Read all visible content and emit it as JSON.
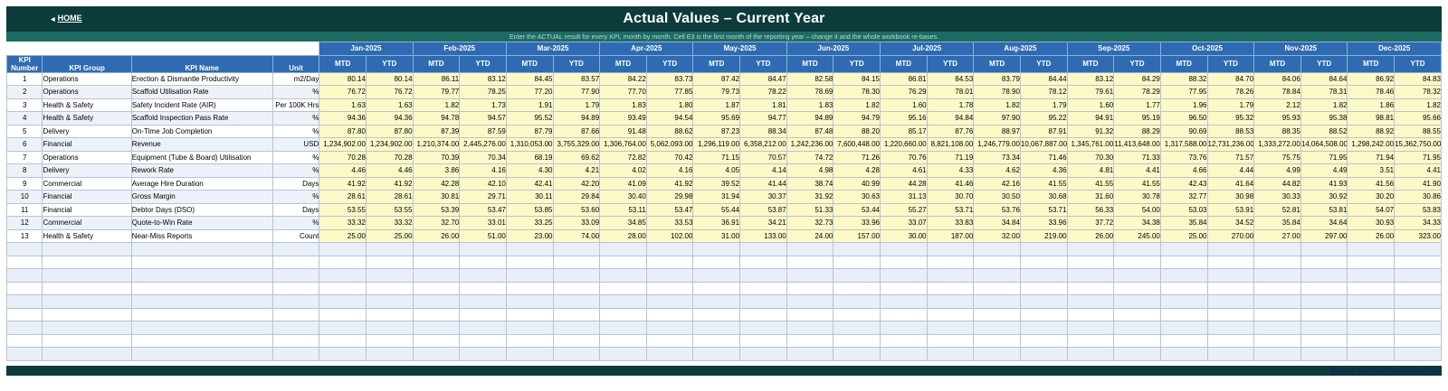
{
  "header": {
    "home_label": "HOME",
    "title": "Actual Values  –  Current Year",
    "subtitle": "Enter the ACTUAL result for every KPI, month by month. Cell E3 is the first month of the reporting year – change it and the whole workbook re-bases."
  },
  "columns": {
    "kpi_number": "KPI Number",
    "kpi_group": "KPI Group",
    "kpi_name": "KPI Name",
    "unit": "Unit",
    "mtd": "MTD",
    "ytd": "YTD"
  },
  "months": [
    "Jan-2025",
    "Feb-2025",
    "Mar-2025",
    "Apr-2025",
    "May-2025",
    "Jun-2025",
    "Jul-2025",
    "Aug-2025",
    "Sep-2025",
    "Oct-2025",
    "Nov-2025",
    "Dec-2025"
  ],
  "rows": [
    {
      "num": "1",
      "group": "Operations",
      "name": "Erection & Dismantle Productivity",
      "unit": "m2/Day",
      "values": [
        "80.14",
        "80.14",
        "86.11",
        "83.12",
        "84.45",
        "83.57",
        "84.22",
        "83.73",
        "87.42",
        "84.47",
        "82.58",
        "84.15",
        "86.81",
        "84.53",
        "83.79",
        "84.44",
        "83.12",
        "84.29",
        "88.32",
        "84.70",
        "84.06",
        "84.64",
        "86.92",
        "84.83"
      ]
    },
    {
      "num": "2",
      "group": "Operations",
      "name": "Scaffold Utilisation Rate",
      "unit": "%",
      "values": [
        "76.72",
        "76.72",
        "79.77",
        "78.25",
        "77.20",
        "77.90",
        "77.70",
        "77.85",
        "79.73",
        "78.22",
        "78.69",
        "78.30",
        "76.29",
        "78.01",
        "78.90",
        "78.12",
        "79.61",
        "78.29",
        "77.95",
        "78.26",
        "78.84",
        "78.31",
        "78.46",
        "78.32"
      ]
    },
    {
      "num": "3",
      "group": "Health & Safety",
      "name": "Safety Incident Rate (AIR)",
      "unit": "Per 100K Hrs",
      "values": [
        "1.63",
        "1.63",
        "1.82",
        "1.73",
        "1.91",
        "1.79",
        "1.83",
        "1.80",
        "1.87",
        "1.81",
        "1.83",
        "1.82",
        "1.60",
        "1.78",
        "1.82",
        "1.79",
        "1.60",
        "1.77",
        "1.96",
        "1.79",
        "2.12",
        "1.82",
        "1.86",
        "1.82"
      ]
    },
    {
      "num": "4",
      "group": "Health & Safety",
      "name": "Scaffold Inspection Pass Rate",
      "unit": "%",
      "values": [
        "94.36",
        "94.36",
        "94.78",
        "94.57",
        "95.52",
        "94.89",
        "93.49",
        "94.54",
        "95.69",
        "94.77",
        "94.89",
        "94.79",
        "95.16",
        "94.84",
        "97.90",
        "95.22",
        "94.91",
        "95.19",
        "96.50",
        "95.32",
        "95.93",
        "95.38",
        "98.81",
        "95.66"
      ]
    },
    {
      "num": "5",
      "group": "Delivery",
      "name": "On-Time Job Completion",
      "unit": "%",
      "values": [
        "87.80",
        "87.80",
        "87.39",
        "87.59",
        "87.79",
        "87.66",
        "91.48",
        "88.62",
        "87.23",
        "88.34",
        "87.48",
        "88.20",
        "85.17",
        "87.76",
        "88.97",
        "87.91",
        "91.32",
        "88.29",
        "90.69",
        "88.53",
        "88.35",
        "88.52",
        "88.92",
        "88.55"
      ]
    },
    {
      "num": "6",
      "group": "Financial",
      "name": "Revenue",
      "unit": "USD",
      "values": [
        "1,234,902.00",
        "1,234,902.00",
        "1,210,374.00",
        "2,445,276.00",
        "1,310,053.00",
        "3,755,329.00",
        "1,306,764.00",
        "5,062,093.00",
        "1,296,119.00",
        "6,358,212.00",
        "1,242,236.00",
        "7,600,448.00",
        "1,220,660.00",
        "8,821,108.00",
        "1,246,779.00",
        "10,067,887.00",
        "1,345,761.00",
        "11,413,648.00",
        "1,317,588.00",
        "12,731,236.00",
        "1,333,272.00",
        "14,064,508.00",
        "1,298,242.00",
        "15,362,750.00"
      ]
    },
    {
      "num": "7",
      "group": "Operations",
      "name": "Equipment (Tube & Board) Utilisation",
      "unit": "%",
      "values": [
        "70.28",
        "70.28",
        "70.39",
        "70.34",
        "68.19",
        "69.62",
        "72.82",
        "70.42",
        "71.15",
        "70.57",
        "74.72",
        "71.26",
        "70.76",
        "71.19",
        "73.34",
        "71.46",
        "70.30",
        "71.33",
        "73.76",
        "71.57",
        "75.75",
        "71.95",
        "71.94",
        "71.95"
      ]
    },
    {
      "num": "8",
      "group": "Delivery",
      "name": "Rework Rate",
      "unit": "%",
      "values": [
        "4.46",
        "4.46",
        "3.86",
        "4.16",
        "4.30",
        "4.21",
        "4.02",
        "4.16",
        "4.05",
        "4.14",
        "4.98",
        "4.28",
        "4.61",
        "4.33",
        "4.62",
        "4.36",
        "4.81",
        "4.41",
        "4.66",
        "4.44",
        "4.99",
        "4.49",
        "3.51",
        "4.41"
      ]
    },
    {
      "num": "9",
      "group": "Commercial",
      "name": "Average Hire Duration",
      "unit": "Days",
      "values": [
        "41.92",
        "41.92",
        "42.28",
        "42.10",
        "42.41",
        "42.20",
        "41.09",
        "41.92",
        "39.52",
        "41.44",
        "38.74",
        "40.99",
        "44.28",
        "41.46",
        "42.16",
        "41.55",
        "41.55",
        "41.55",
        "42.43",
        "41.64",
        "44.82",
        "41.93",
        "41.56",
        "41.90"
      ]
    },
    {
      "num": "10",
      "group": "Financial",
      "name": "Gross Margin",
      "unit": "%",
      "values": [
        "28.61",
        "28.61",
        "30.81",
        "29.71",
        "30.11",
        "29.84",
        "30.40",
        "29.98",
        "31.94",
        "30.37",
        "31.92",
        "30.63",
        "31.13",
        "30.70",
        "30.50",
        "30.68",
        "31.60",
        "30.78",
        "32.77",
        "30.98",
        "30.33",
        "30.92",
        "30.20",
        "30.86"
      ]
    },
    {
      "num": "11",
      "group": "Financial",
      "name": "Debtor Days (DSO)",
      "unit": "Days",
      "values": [
        "53.55",
        "53.55",
        "53.39",
        "53.47",
        "53.85",
        "53.60",
        "53.11",
        "53.47",
        "55.44",
        "53.87",
        "51.33",
        "53.44",
        "55.27",
        "53.71",
        "53.76",
        "53.71",
        "56.33",
        "54.00",
        "53.03",
        "53.91",
        "52.81",
        "53.81",
        "54.07",
        "53.83"
      ]
    },
    {
      "num": "12",
      "group": "Commercial",
      "name": "Quote-to-Win Rate",
      "unit": "%",
      "values": [
        "33.32",
        "33.32",
        "32.70",
        "33.01",
        "33.25",
        "33.09",
        "34.85",
        "33.53",
        "36.91",
        "34.21",
        "32.73",
        "33.96",
        "33.07",
        "33.83",
        "34.84",
        "33.96",
        "37.72",
        "34.38",
        "35.84",
        "34.52",
        "35.84",
        "34.64",
        "30.93",
        "34.33"
      ]
    },
    {
      "num": "13",
      "group": "Health & Safety",
      "name": "Near-Miss Reports",
      "unit": "Count",
      "values": [
        "25.00",
        "25.00",
        "26.00",
        "51.00",
        "23.00",
        "74.00",
        "28.00",
        "102.00",
        "31.00",
        "133.00",
        "24.00",
        "157.00",
        "30.00",
        "187.00",
        "32.00",
        "219.00",
        "26.00",
        "245.00",
        "25.00",
        "270.00",
        "27.00",
        "297.00",
        "26.00",
        "323.00"
      ]
    }
  ],
  "footer": {
    "source_label": "Source: NextGenTemplates.Com"
  }
}
